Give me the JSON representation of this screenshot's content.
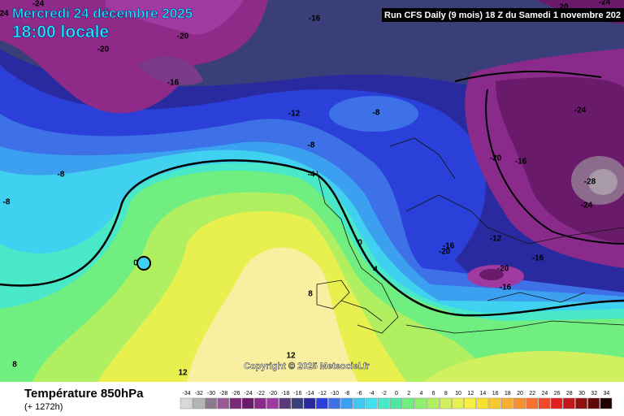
{
  "header": {
    "date": "Mercredi 24 décembre 2025",
    "time": "18:00 locale",
    "run": "Run CFS Daily (9 mois) 18 Z du Samedi 1 novembre 202"
  },
  "contour_labels": [
    "-24",
    "24",
    "-20",
    "-16",
    "-20",
    "-16",
    "-12",
    "-8",
    "-8",
    "-4",
    "-8",
    "-8",
    "0",
    "0",
    "4",
    "8",
    "12",
    "12",
    "8",
    "-24",
    "20",
    "-24",
    "-16",
    "-20",
    "-28",
    "-24",
    "-12",
    "-16",
    "-20",
    "-16",
    "-20",
    "-16"
  ],
  "copyright": "Copyright © 2025 Meteociel.fr",
  "footer": {
    "title": "Température 850hPa",
    "lead": "(+ 1272h)"
  },
  "legend": {
    "values": [
      -34,
      -32,
      -30,
      -28,
      -26,
      -24,
      -22,
      -20,
      -18,
      -16,
      -14,
      -12,
      -10,
      -8,
      -6,
      -4,
      -2,
      0,
      2,
      4,
      6,
      8,
      10,
      12,
      14,
      16,
      18,
      20,
      22,
      24,
      26,
      28,
      30,
      32,
      34
    ],
    "colors": [
      "#d8d8d8",
      "#b4b4b4",
      "#8c7a8c",
      "#9a5a9a",
      "#7a2a7a",
      "#6a1a6a",
      "#8a2a8a",
      "#a03aa0",
      "#5a3a7a",
      "#3a3f7a",
      "#2a2aa0",
      "#2a40d8",
      "#3e70e8",
      "#3ca0f0",
      "#40c8f0",
      "#40e0f0",
      "#48e8c8",
      "#50e8a0",
      "#70ee80",
      "#90f070",
      "#b0f060",
      "#d0f060",
      "#e8f050",
      "#f8f040",
      "#f8e030",
      "#f8c830",
      "#f8b030",
      "#f89030",
      "#f87030",
      "#f04828",
      "#e02020",
      "#c01818",
      "#901010",
      "#600808",
      "#200000"
    ]
  }
}
